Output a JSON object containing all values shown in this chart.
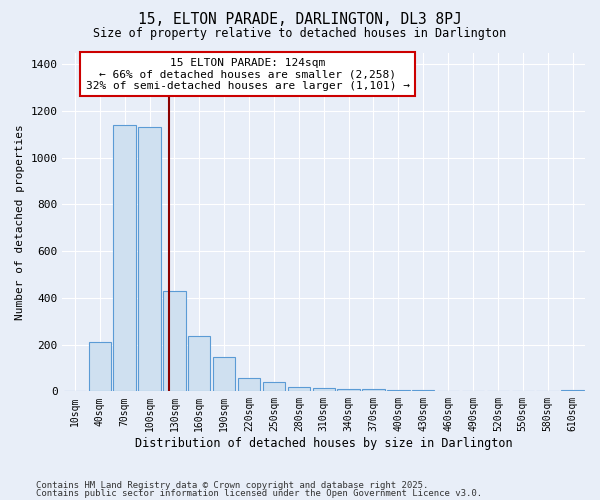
{
  "title1": "15, ELTON PARADE, DARLINGTON, DL3 8PJ",
  "title2": "Size of property relative to detached houses in Darlington",
  "xlabel": "Distribution of detached houses by size in Darlington",
  "ylabel": "Number of detached properties",
  "categories": [
    "10sqm",
    "40sqm",
    "70sqm",
    "100sqm",
    "130sqm",
    "160sqm",
    "190sqm",
    "220sqm",
    "250sqm",
    "280sqm",
    "310sqm",
    "340sqm",
    "370sqm",
    "400sqm",
    "430sqm",
    "460sqm",
    "490sqm",
    "520sqm",
    "550sqm",
    "580sqm",
    "610sqm"
  ],
  "values": [
    0,
    210,
    1140,
    1130,
    430,
    235,
    145,
    55,
    40,
    20,
    15,
    10,
    8,
    5,
    5,
    3,
    2,
    2,
    1,
    1,
    5
  ],
  "bar_color": "#cfe0f0",
  "bar_edge_color": "#5b9bd5",
  "background_color": "#e8eef8",
  "grid_color": "#ffffff",
  "vline_x": 3.8,
  "vline_color": "#8b0000",
  "annotation_text": "15 ELTON PARADE: 124sqm\n← 66% of detached houses are smaller (2,258)\n32% of semi-detached houses are larger (1,101) →",
  "annotation_box_color": "#ffffff",
  "annotation_box_edge": "#cc0000",
  "ylim": [
    0,
    1450
  ],
  "yticks": [
    0,
    200,
    400,
    600,
    800,
    1000,
    1200,
    1400
  ],
  "footnote1": "Contains HM Land Registry data © Crown copyright and database right 2025.",
  "footnote2": "Contains public sector information licensed under the Open Government Licence v3.0."
}
